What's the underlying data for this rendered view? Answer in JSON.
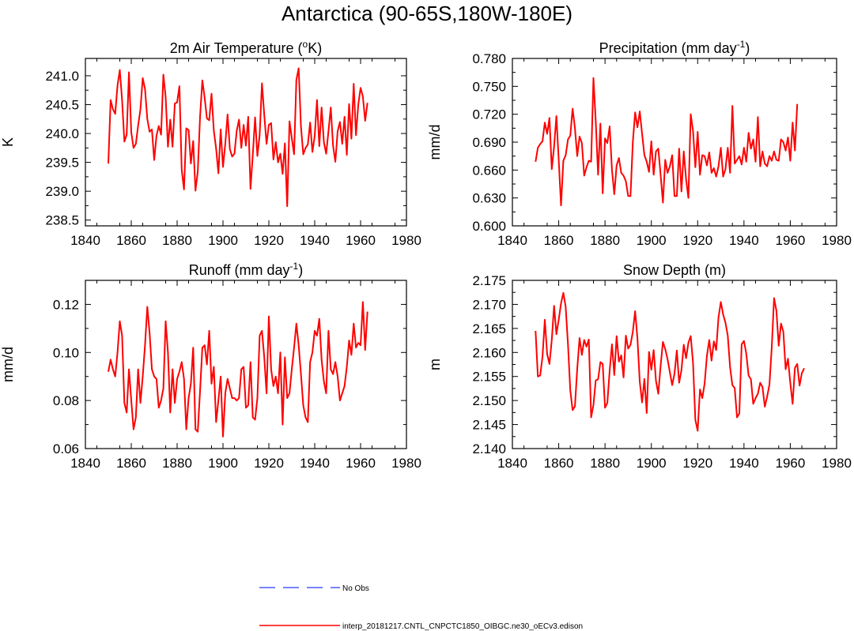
{
  "figure_title": "Antarctica (90-65S,180W-180E)",
  "legend": {
    "entries": [
      {
        "label": "No Obs",
        "color": "#4a5cff",
        "style": "dashed"
      },
      {
        "label": "interp_20181217.CNTL_CNPCTC1850_OIBGC.ne30_oECv3.edison",
        "color": "#ff0000",
        "style": "solid"
      }
    ]
  },
  "chart_data": [
    {
      "type": "line",
      "title": "2m Air Temperature (",
      "title_sup": "o",
      "title_post": "K)",
      "xlabel": "",
      "ylabel": "K",
      "xlim": [
        1840,
        1980
      ],
      "ylim": [
        238.4,
        241.3
      ],
      "xticks": [
        1840,
        1860,
        1880,
        1900,
        1920,
        1940,
        1960,
        1980
      ],
      "xtick_labels": [
        "1840",
        "1860",
        "1880",
        "1900",
        "1920",
        "1940",
        "1960",
        "1980"
      ],
      "yticks": [
        238.5,
        239.0,
        239.5,
        240.0,
        240.5,
        241.0
      ],
      "ytick_labels": [
        "238.5",
        "239.0",
        "239.5",
        "240.0",
        "240.5",
        "241.0"
      ],
      "x_start": 1850,
      "series": [
        {
          "name": "interp_20181217.CNTL_CNPCTC1850_OIBGC.ne30_oECv3.edison",
          "color": "#ff0000",
          "values": [
            239.48,
            240.58,
            240.42,
            240.34,
            240.83,
            241.1,
            240.58,
            239.86,
            239.98,
            241.06,
            240.02,
            239.75,
            239.82,
            240.14,
            240.42,
            240.96,
            240.77,
            240.25,
            240.03,
            240.07,
            239.54,
            239.96,
            240.13,
            239.98,
            241.02,
            240.63,
            239.77,
            240.24,
            239.77,
            240.52,
            240.54,
            240.82,
            239.37,
            239.03,
            240.09,
            240.06,
            239.48,
            239.87,
            239.01,
            239.34,
            240.29,
            240.92,
            240.62,
            240.26,
            240.23,
            240.69,
            240.05,
            239.74,
            239.31,
            240.07,
            239.42,
            239.82,
            240.33,
            239.73,
            239.6,
            239.65,
            240.05,
            240.24,
            239.75,
            240.15,
            239.79,
            240.29,
            239.04,
            239.63,
            240.28,
            239.61,
            239.98,
            240.87,
            240.32,
            239.82,
            240.15,
            240.18,
            239.55,
            239.85,
            239.5,
            239.65,
            239.3,
            239.83,
            238.74,
            240.21,
            239.92,
            239.64,
            240.93,
            241.13,
            240.12,
            239.64,
            239.75,
            239.81,
            240.19,
            239.68,
            239.96,
            240.58,
            239.78,
            240.45,
            239.85,
            239.65,
            240.04,
            240.45,
            239.79,
            239.51,
            240.04,
            240.2,
            239.82,
            240.29,
            239.63,
            240.51,
            239.91,
            240.86,
            239.97,
            240.5,
            240.79,
            240.64,
            240.22,
            240.53
          ]
        }
      ]
    },
    {
      "type": "line",
      "title": "Precipitation (mm day",
      "title_sup": "-1",
      "title_post": ")",
      "xlabel": "",
      "ylabel": "mm/d",
      "xlim": [
        1840,
        1980
      ],
      "ylim": [
        0.6,
        0.78
      ],
      "xticks": [
        1840,
        1860,
        1880,
        1900,
        1920,
        1940,
        1960,
        1980
      ],
      "xtick_labels": [
        "1840",
        "1860",
        "1880",
        "1900",
        "1920",
        "1940",
        "1960",
        "1980"
      ],
      "yticks": [
        0.6,
        0.63,
        0.66,
        0.69,
        0.72,
        0.75,
        0.78
      ],
      "ytick_labels": [
        "0.600",
        "0.630",
        "0.660",
        "0.690",
        "0.720",
        "0.750",
        "0.780"
      ],
      "x_start": 1850,
      "series": [
        {
          "name": "interp_20181217.CNTL_CNPCTC1850_OIBGC.ne30_oECv3.edison",
          "color": "#ff0000",
          "values": [
            0.669,
            0.684,
            0.688,
            0.691,
            0.711,
            0.699,
            0.716,
            0.661,
            0.685,
            0.718,
            0.671,
            0.622,
            0.67,
            0.676,
            0.693,
            0.697,
            0.726,
            0.705,
            0.675,
            0.696,
            0.689,
            0.654,
            0.663,
            0.67,
            0.669,
            0.759,
            0.712,
            0.655,
            0.71,
            0.635,
            0.694,
            0.689,
            0.707,
            0.66,
            0.634,
            0.665,
            0.673,
            0.657,
            0.654,
            0.648,
            0.632,
            0.632,
            0.69,
            0.722,
            0.706,
            0.723,
            0.699,
            0.676,
            0.669,
            0.658,
            0.691,
            0.655,
            0.68,
            0.683,
            0.655,
            0.625,
            0.671,
            0.657,
            0.664,
            0.676,
            0.632,
            0.632,
            0.683,
            0.637,
            0.68,
            0.65,
            0.63,
            0.72,
            0.702,
            0.663,
            0.701,
            0.655,
            0.676,
            0.675,
            0.665,
            0.679,
            0.657,
            0.662,
            0.653,
            0.664,
            0.684,
            0.653,
            0.661,
            0.684,
            0.657,
            0.729,
            0.667,
            0.671,
            0.675,
            0.666,
            0.684,
            0.669,
            0.7,
            0.683,
            0.693,
            0.669,
            0.717,
            0.664,
            0.68,
            0.667,
            0.664,
            0.675,
            0.67,
            0.68,
            0.671,
            0.67,
            0.693,
            0.69,
            0.681,
            0.695,
            0.67,
            0.711,
            0.681,
            0.731
          ]
        }
      ]
    },
    {
      "type": "line",
      "title": "Runoff (mm day",
      "title_sup": "-1",
      "title_post": ")",
      "xlabel": "",
      "ylabel": "mm/d",
      "xlim": [
        1840,
        1980
      ],
      "ylim": [
        0.06,
        0.13
      ],
      "xticks": [
        1840,
        1860,
        1880,
        1900,
        1920,
        1940,
        1960,
        1980
      ],
      "xtick_labels": [
        "1840",
        "1860",
        "1880",
        "1900",
        "1920",
        "1940",
        "1960",
        "1980"
      ],
      "yticks": [
        0.06,
        0.08,
        0.1,
        0.12
      ],
      "ytick_labels": [
        "0.06",
        "0.08",
        "0.10",
        "0.12"
      ],
      "x_start": 1850,
      "series": [
        {
          "name": "interp_20181217.CNTL_CNPCTC1850_OIBGC.ne30_oECv3.edison",
          "color": "#ff0000",
          "values": [
            0.092,
            0.097,
            0.093,
            0.09,
            0.1,
            0.113,
            0.107,
            0.079,
            0.075,
            0.093,
            0.08,
            0.068,
            0.073,
            0.093,
            0.079,
            0.09,
            0.103,
            0.119,
            0.108,
            0.093,
            0.09,
            0.089,
            0.077,
            0.08,
            0.085,
            0.113,
            0.1,
            0.075,
            0.093,
            0.079,
            0.089,
            0.092,
            0.096,
            0.089,
            0.068,
            0.081,
            0.087,
            0.102,
            0.068,
            0.067,
            0.084,
            0.102,
            0.103,
            0.095,
            0.109,
            0.087,
            0.094,
            0.071,
            0.08,
            0.09,
            0.065,
            0.083,
            0.089,
            0.085,
            0.081,
            0.081,
            0.08,
            0.081,
            0.093,
            0.094,
            0.077,
            0.078,
            0.096,
            0.073,
            0.072,
            0.081,
            0.107,
            0.109,
            0.098,
            0.083,
            0.115,
            0.093,
            0.086,
            0.09,
            0.083,
            0.1,
            0.07,
            0.098,
            0.081,
            0.083,
            0.093,
            0.102,
            0.112,
            0.103,
            0.091,
            0.078,
            0.073,
            0.071,
            0.096,
            0.1,
            0.109,
            0.107,
            0.114,
            0.097,
            0.088,
            0.083,
            0.109,
            0.093,
            0.091,
            0.096,
            0.09,
            0.08,
            0.083,
            0.086,
            0.094,
            0.105,
            0.099,
            0.112,
            0.102,
            0.104,
            0.103,
            0.121,
            0.101,
            0.117
          ]
        }
      ]
    },
    {
      "type": "line",
      "title": "Snow Depth (m)",
      "title_sup": "",
      "title_post": "",
      "xlabel": "",
      "ylabel": "m",
      "xlim": [
        1840,
        1980
      ],
      "ylim": [
        2.14,
        2.175
      ],
      "xticks": [
        1840,
        1860,
        1880,
        1900,
        1920,
        1940,
        1960,
        1980
      ],
      "xtick_labels": [
        "1840",
        "1860",
        "1880",
        "1900",
        "1920",
        "1940",
        "1960",
        "1980"
      ],
      "yticks": [
        2.14,
        2.145,
        2.15,
        2.155,
        2.16,
        2.165,
        2.17,
        2.175
      ],
      "ytick_labels": [
        "2.140",
        "2.145",
        "2.150",
        "2.155",
        "2.160",
        "2.165",
        "2.170",
        "2.175"
      ],
      "x_start": 1850,
      "series": [
        {
          "name": "interp_20181217.CNTL_CNPCTC1850_OIBGC.ne30_oECv3.edison",
          "color": "#ff0000",
          "values": [
            2.1645,
            2.155,
            2.1552,
            2.1591,
            2.1668,
            2.1597,
            2.1576,
            2.1626,
            2.1697,
            2.1638,
            2.1668,
            2.1702,
            2.1724,
            2.1695,
            2.1617,
            2.1521,
            2.148,
            2.1488,
            2.1566,
            2.163,
            2.1595,
            2.1626,
            2.1612,
            2.1627,
            2.1465,
            2.1491,
            2.1542,
            2.1544,
            2.158,
            2.1576,
            2.1485,
            2.1495,
            2.1562,
            2.1617,
            2.1553,
            2.1634,
            2.1581,
            2.1594,
            2.1548,
            2.1635,
            2.1608,
            2.1616,
            2.1643,
            2.1686,
            2.1629,
            2.1539,
            2.1496,
            2.1545,
            2.1474,
            2.1601,
            2.1564,
            2.1605,
            2.1541,
            2.1514,
            2.1572,
            2.1622,
            2.1607,
            2.1586,
            2.1559,
            2.1532,
            2.1556,
            2.1604,
            2.1537,
            2.1563,
            2.1616,
            2.1588,
            2.162,
            2.1634,
            2.1579,
            2.146,
            2.1437,
            2.1523,
            2.1505,
            2.1535,
            2.1593,
            2.1626,
            2.1583,
            2.1623,
            2.1605,
            2.1673,
            2.1705,
            2.1679,
            2.1662,
            2.1635,
            2.1569,
            2.1532,
            2.1526,
            2.1465,
            2.1473,
            2.1617,
            2.1624,
            2.1597,
            2.1552,
            2.1544,
            2.1493,
            2.1505,
            2.1514,
            2.1537,
            2.1528,
            2.1487,
            2.1508,
            2.1533,
            2.1611,
            2.1713,
            2.1687,
            2.1614,
            2.166,
            2.1643,
            2.1565,
            2.1587,
            2.1537,
            2.1493,
            2.1568,
            2.1576,
            2.1531,
            2.1557,
            2.1567
          ]
        }
      ]
    }
  ]
}
